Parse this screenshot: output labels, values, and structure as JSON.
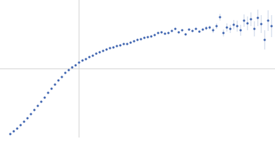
{
  "chart_data": {
    "type": "scatter",
    "color": "#3f65b0",
    "error_color": "#9fb3d6",
    "xlim": [
      -115,
      285
    ],
    "ylim": [
      -100,
      100
    ],
    "x": [
      -100,
      -95,
      -90,
      -85,
      -80,
      -75,
      -70,
      -65,
      -60,
      -55,
      -50,
      -45,
      -40,
      -35,
      -30,
      -25,
      -20,
      -15,
      -10,
      -5,
      0,
      5,
      10,
      15,
      20,
      25,
      30,
      35,
      40,
      45,
      50,
      55,
      60,
      65,
      70,
      75,
      80,
      85,
      90,
      95,
      100,
      105,
      110,
      115,
      120,
      125,
      130,
      135,
      140,
      145,
      150,
      155,
      160,
      165,
      170,
      175,
      180,
      185,
      190,
      195,
      200,
      205,
      210,
      215,
      220,
      225,
      230,
      235,
      240,
      245,
      250,
      255,
      260,
      265,
      270,
      275,
      280
    ],
    "values": [
      -95,
      -91,
      -87,
      -82,
      -77,
      -72,
      -66,
      -60,
      -54,
      -48,
      -42,
      -35,
      -29,
      -23,
      -17,
      -12,
      -6,
      -2,
      2,
      5,
      9,
      12,
      14,
      17,
      19,
      22,
      24,
      26,
      28,
      30,
      31,
      33,
      34,
      36,
      36,
      38,
      40,
      42,
      43,
      45,
      46,
      47,
      49,
      52,
      53,
      51,
      52,
      55,
      58,
      53,
      56,
      50,
      57,
      55,
      58,
      54,
      57,
      59,
      60,
      56,
      62,
      75,
      52,
      60,
      58,
      64,
      62,
      56,
      70,
      66,
      72,
      58,
      74,
      65,
      42,
      70,
      62
    ],
    "errors": [
      1,
      1,
      1,
      1,
      1,
      1,
      1,
      1,
      1,
      1,
      1,
      1,
      1,
      1,
      1,
      1,
      1,
      1,
      1,
      1,
      1,
      1,
      1,
      1,
      1,
      1,
      1,
      1,
      1,
      1,
      1,
      1,
      1,
      1,
      1,
      1,
      1,
      1,
      1,
      1,
      1,
      1,
      1,
      1,
      1,
      1,
      1,
      1,
      1,
      1,
      1,
      1,
      1,
      1,
      1,
      1,
      1,
      3,
      3,
      4,
      4,
      5,
      5,
      6,
      6,
      7,
      8,
      8,
      9,
      10,
      10,
      11,
      12,
      13,
      14,
      15,
      16
    ]
  }
}
